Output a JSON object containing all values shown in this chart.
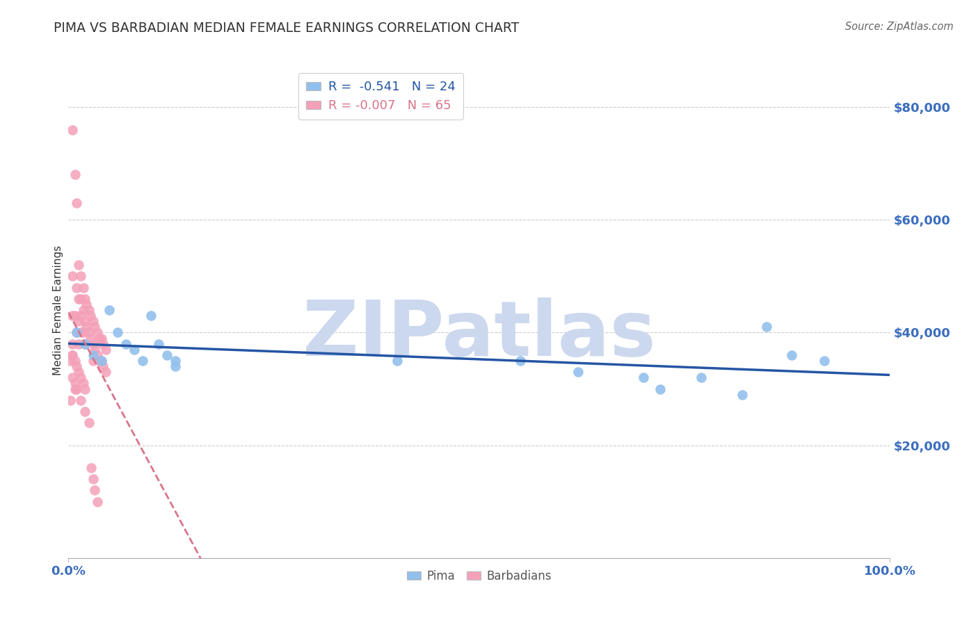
{
  "title": "PIMA VS BARBADIAN MEDIAN FEMALE EARNINGS CORRELATION CHART",
  "source": "Source: ZipAtlas.com",
  "ylabel": "Median Female Earnings",
  "xlim": [
    0.0,
    1.0
  ],
  "ylim": [
    0,
    88000
  ],
  "yticks": [
    0,
    20000,
    40000,
    60000,
    80000
  ],
  "ytick_labels": [
    "",
    "$20,000",
    "$40,000",
    "$60,000",
    "$80,000"
  ],
  "xtick_labels": [
    "0.0%",
    "100.0%"
  ],
  "pima_x": [
    0.01,
    0.02,
    0.03,
    0.04,
    0.05,
    0.06,
    0.07,
    0.08,
    0.09,
    0.1,
    0.11,
    0.12,
    0.13,
    0.13,
    0.4,
    0.55,
    0.62,
    0.7,
    0.72,
    0.77,
    0.82,
    0.85,
    0.88,
    0.92
  ],
  "pima_y": [
    40000,
    38000,
    36000,
    35000,
    44000,
    40000,
    38000,
    37000,
    35000,
    43000,
    38000,
    36000,
    35000,
    34000,
    35000,
    35000,
    33000,
    32000,
    30000,
    32000,
    29000,
    41000,
    36000,
    35000
  ],
  "barbadian_x": [
    0.005,
    0.005,
    0.005,
    0.005,
    0.008,
    0.008,
    0.01,
    0.01,
    0.01,
    0.012,
    0.012,
    0.012,
    0.012,
    0.015,
    0.015,
    0.015,
    0.015,
    0.018,
    0.018,
    0.018,
    0.02,
    0.02,
    0.02,
    0.022,
    0.022,
    0.025,
    0.025,
    0.027,
    0.027,
    0.03,
    0.03,
    0.03,
    0.032,
    0.032,
    0.035,
    0.035,
    0.038,
    0.038,
    0.04,
    0.04,
    0.042,
    0.042,
    0.045,
    0.045,
    0.005,
    0.005,
    0.008,
    0.008,
    0.01,
    0.01,
    0.012,
    0.015,
    0.015,
    0.018,
    0.02,
    0.02,
    0.025,
    0.028,
    0.03,
    0.032,
    0.035,
    0.002,
    0.002,
    0.005,
    0.008
  ],
  "barbadian_y": [
    76000,
    50000,
    43000,
    38000,
    68000,
    43000,
    63000,
    48000,
    40000,
    52000,
    46000,
    42000,
    38000,
    50000,
    46000,
    43000,
    40000,
    48000,
    44000,
    40000,
    46000,
    42000,
    38000,
    45000,
    41000,
    44000,
    40000,
    43000,
    39000,
    42000,
    38000,
    35000,
    41000,
    37000,
    40000,
    36000,
    39000,
    35000,
    39000,
    35000,
    38000,
    34000,
    37000,
    33000,
    36000,
    32000,
    35000,
    31000,
    34000,
    30000,
    33000,
    32000,
    28000,
    31000,
    30000,
    26000,
    24000,
    16000,
    14000,
    12000,
    10000,
    35000,
    28000,
    36000,
    30000
  ],
  "pima_color": "#92c0ed",
  "barbadian_color": "#f4a0b8",
  "pima_trend_color": "#2455a4",
  "barbadian_trend_color": "#d9748a",
  "background_color": "#ffffff",
  "grid_color": "#cccccc",
  "watermark_color": "#ccd8ee",
  "title_color": "#333333",
  "ytick_color": "#3b6dbf",
  "xtick_color": "#3b6dbf",
  "source_color": "#666666",
  "legend_pima_label": "R =  -0.541   N = 24",
  "legend_barb_label": "R = -0.007   N = 65"
}
